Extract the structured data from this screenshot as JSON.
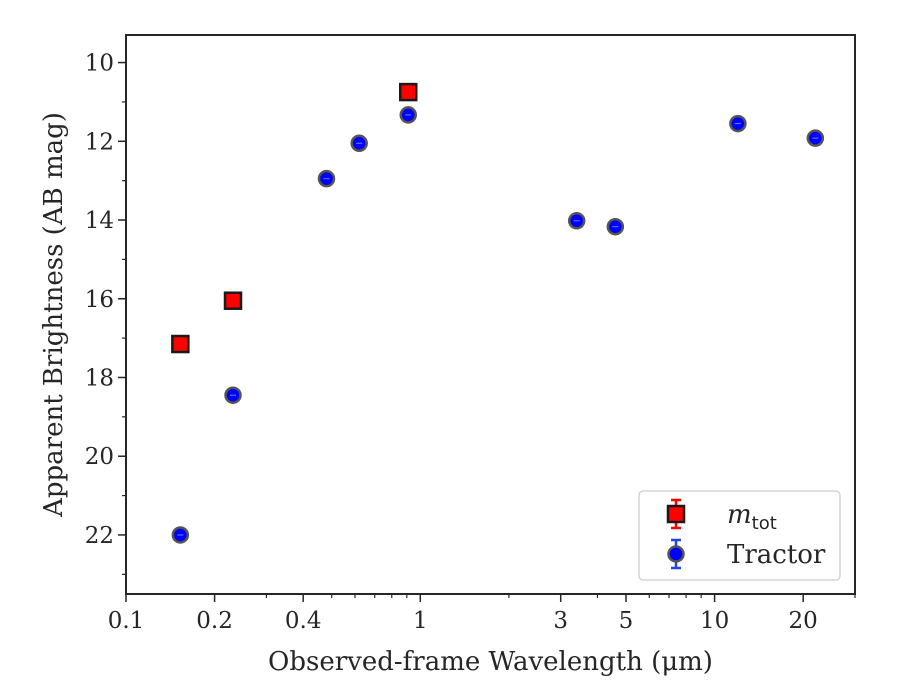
{
  "chart_data": {
    "type": "scatter",
    "xlabel": "Observed-frame Wavelength (μm)",
    "ylabel": "Apparent Brightness (AB mag)",
    "x_scale": "log",
    "xlim": [
      0.1,
      30
    ],
    "ylim": [
      23.5,
      9.3
    ],
    "y_inverted": true,
    "grid": false,
    "legend_position": "lower right",
    "x_ticks": [
      {
        "value": 0.1,
        "label": "0.1"
      },
      {
        "value": 0.2,
        "label": "0.2"
      },
      {
        "value": 0.4,
        "label": "0.4"
      },
      {
        "value": 1,
        "label": "1"
      },
      {
        "value": 3,
        "label": "3"
      },
      {
        "value": 5,
        "label": "5"
      },
      {
        "value": 10,
        "label": "10"
      },
      {
        "value": 20,
        "label": "20"
      }
    ],
    "y_ticks": [
      {
        "value": 10,
        "label": "10"
      },
      {
        "value": 12,
        "label": "12"
      },
      {
        "value": 14,
        "label": "14"
      },
      {
        "value": 16,
        "label": "16"
      },
      {
        "value": 18,
        "label": "18"
      },
      {
        "value": 20,
        "label": "20"
      },
      {
        "value": 22,
        "label": "22"
      }
    ],
    "series": [
      {
        "name": "m_tot",
        "legend_base": "m",
        "legend_sub": "tot",
        "marker": "square",
        "color": "#ff0000",
        "edge_color": "#1a1a1a",
        "error_color": "#ff0000",
        "x": [
          0.153,
          0.231,
          0.91
        ],
        "y": [
          17.15,
          16.05,
          10.75
        ]
      },
      {
        "name": "Tractor",
        "legend_base": "Tractor",
        "legend_sub": "",
        "marker": "circle",
        "color": "#0000ff",
        "edge_color": "#555555",
        "error_color": "#2244ee",
        "x": [
          0.153,
          0.231,
          0.48,
          0.62,
          0.91,
          3.4,
          4.6,
          12.0,
          22.0
        ],
        "y": [
          22.0,
          18.45,
          12.95,
          12.05,
          11.33,
          14.02,
          14.17,
          11.55,
          11.92
        ]
      }
    ]
  }
}
